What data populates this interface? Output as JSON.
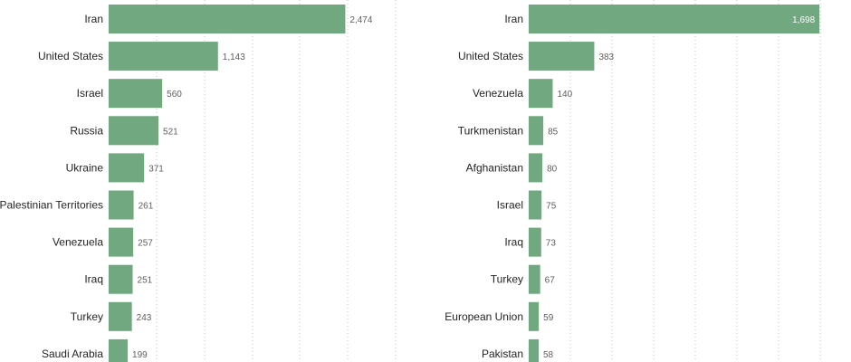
{
  "chart_data": [
    {
      "type": "bar",
      "orientation": "horizontal",
      "categories": [
        "Iran",
        "United States",
        "Israel",
        "Russia",
        "Ukraine",
        "Palestinian Territories",
        "Venezuela",
        "Iraq",
        "Turkey",
        "Saudi Arabia"
      ],
      "values": [
        2474,
        1143,
        560,
        521,
        371,
        261,
        257,
        251,
        243,
        199
      ],
      "value_labels": [
        "2,474",
        "1,143",
        "560",
        "521",
        "371",
        "261",
        "257",
        "251",
        "243",
        "199"
      ],
      "title": "",
      "xlabel": "",
      "ylabel": "",
      "xlim": [
        0,
        3000
      ],
      "grid": true,
      "bar_color": "#71a880"
    },
    {
      "type": "bar",
      "orientation": "horizontal",
      "categories": [
        "Iran",
        "United States",
        "Venezuela",
        "Turkmenistan",
        "Afghanistan",
        "Israel",
        "Iraq",
        "Turkey",
        "European Union",
        "Pakistan"
      ],
      "values": [
        1698,
        383,
        140,
        85,
        80,
        75,
        73,
        67,
        59,
        58
      ],
      "value_labels": [
        "1,698",
        "383",
        "140",
        "85",
        "80",
        "75",
        "73",
        "67",
        "59",
        "58"
      ],
      "value_label_inside": [
        true,
        false,
        false,
        false,
        false,
        false,
        false,
        false,
        false,
        false
      ],
      "title": "",
      "xlabel": "",
      "ylabel": "",
      "xlim": [
        0,
        1750
      ],
      "grid": true,
      "bar_color": "#71a880"
    }
  ]
}
